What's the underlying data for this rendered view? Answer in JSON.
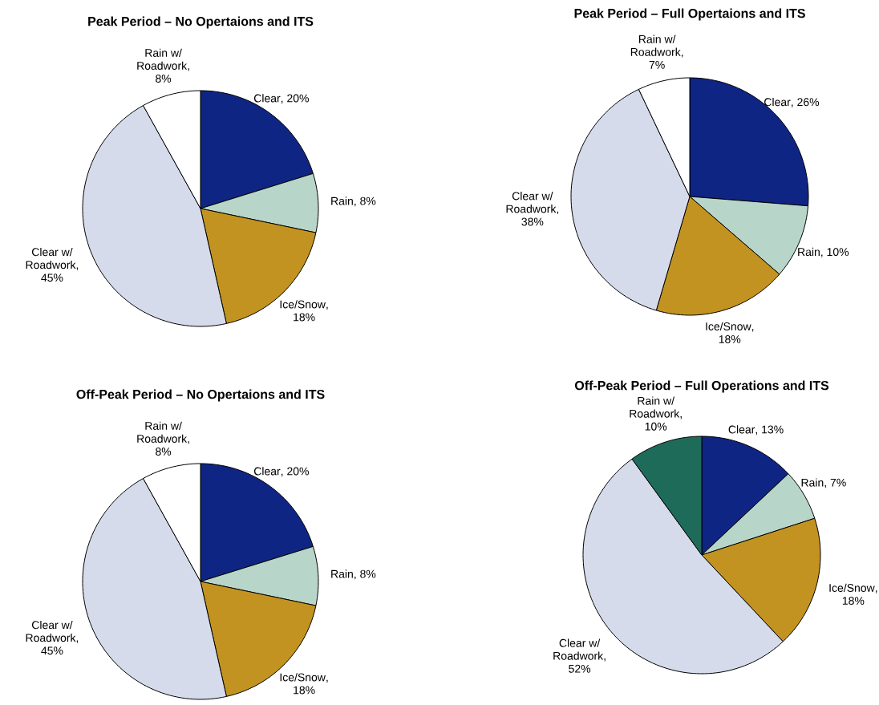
{
  "chart_data": [
    {
      "type": "pie",
      "title": "Peak Period – No Opertaions and ITS",
      "categories": [
        "Clear",
        "Rain",
        "Ice/Snow",
        "Clear w/ Roadwork",
        "Rain w/ Roadwork"
      ],
      "values": [
        20,
        8,
        18,
        45,
        8
      ],
      "value_labels": [
        ", 20%",
        ", 8%",
        ", 18%",
        ", 45%",
        ", 8%"
      ],
      "colors": [
        "#0f2584",
        "#b8d5c9",
        "#c39322",
        "#d5dbea",
        "#ffffff"
      ]
    },
    {
      "type": "pie",
      "title": "Peak Period – Full Opertaions and ITS",
      "categories": [
        "Clear",
        "Rain",
        "Ice/Snow",
        "Clear w/ Roadwork",
        "Rain w/ Roadwork"
      ],
      "values": [
        26,
        10,
        18,
        38,
        7
      ],
      "value_labels": [
        ", 26%",
        ", 10%",
        ", 18%",
        ", 38%",
        ", 7%"
      ],
      "colors": [
        "#0f2584",
        "#b8d5c9",
        "#c39322",
        "#d5dbea",
        "#ffffff"
      ]
    },
    {
      "type": "pie",
      "title": "Off-Peak Period – No Opertaions and ITS",
      "categories": [
        "Clear",
        "Rain",
        "Ice/Snow",
        "Clear w/ Roadwork",
        "Rain w/ Roadwork"
      ],
      "values": [
        20,
        8,
        18,
        45,
        8
      ],
      "value_labels": [
        ", 20%",
        ", 8%",
        ", 18%",
        ", 45%",
        ", 8%"
      ],
      "colors": [
        "#0f2584",
        "#b8d5c9",
        "#c39322",
        "#d5dbea",
        "#ffffff"
      ]
    },
    {
      "type": "pie",
      "title": "Off-Peak Period – Full Operations and ITS",
      "categories": [
        "Clear",
        "Rain",
        "Ice/Snow",
        "Clear w/ Roadwork",
        "Rain w/ Roadwork"
      ],
      "values": [
        13,
        7,
        18,
        52,
        10
      ],
      "value_labels": [
        ", 13%",
        ", 7%",
        ", 18%",
        ", 52%",
        ", 10%"
      ],
      "colors": [
        "#0f2584",
        "#b8d5c9",
        "#c39322",
        "#d5dbea",
        "#1f6b5a"
      ]
    }
  ]
}
